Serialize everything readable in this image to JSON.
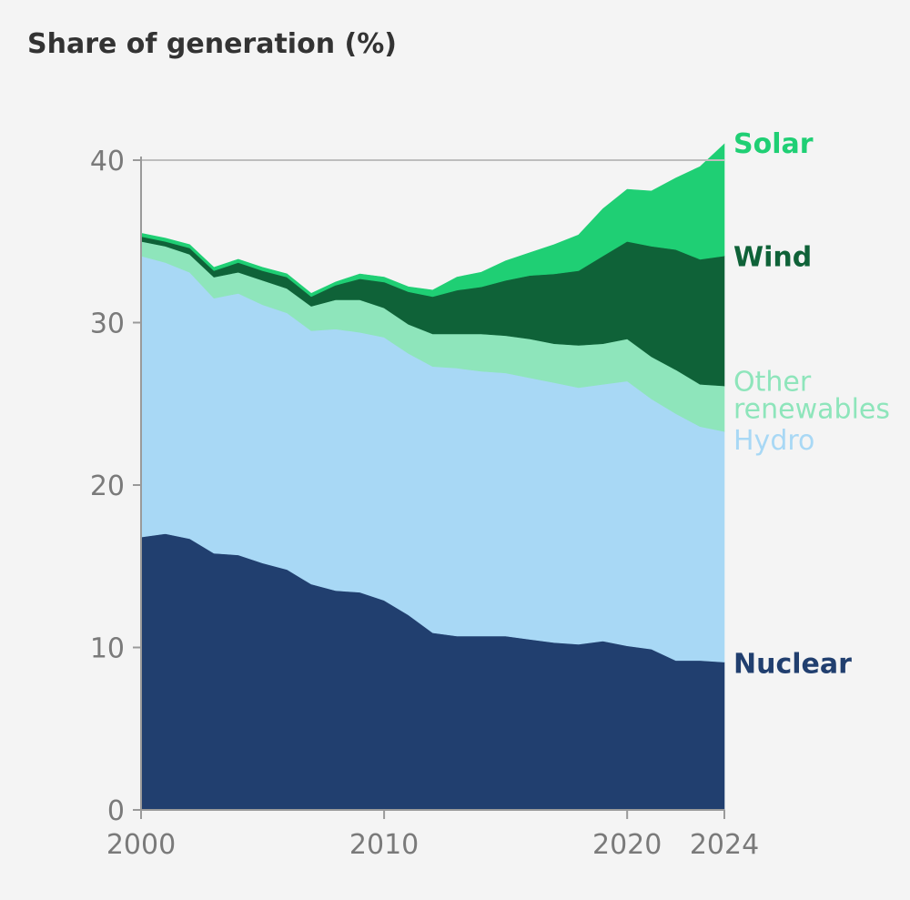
{
  "chart_data": {
    "type": "area",
    "stacked": true,
    "title": "Share of generation (%)",
    "xlabel": "",
    "ylabel": "",
    "xlim": [
      2000,
      2024
    ],
    "ylim": [
      0,
      40
    ],
    "x_ticks": [
      {
        "value": 2000,
        "label": "2000"
      },
      {
        "value": 2010,
        "label": "2010"
      },
      {
        "value": 2020,
        "label": "2020"
      },
      {
        "value": 2024,
        "label": "2024"
      }
    ],
    "y_ticks": [
      {
        "value": 0,
        "label": "0"
      },
      {
        "value": 10,
        "label": "10"
      },
      {
        "value": 20,
        "label": "20"
      },
      {
        "value": 30,
        "label": "30"
      },
      {
        "value": 40,
        "label": "40"
      }
    ],
    "grid": false,
    "reference_line": 40,
    "legend": "direct labels at right end",
    "x": [
      2000,
      2001,
      2002,
      2003,
      2004,
      2005,
      2006,
      2007,
      2008,
      2009,
      2010,
      2011,
      2012,
      2013,
      2014,
      2015,
      2016,
      2017,
      2018,
      2019,
      2020,
      2021,
      2022,
      2023,
      2024
    ],
    "series": [
      {
        "name": "Nuclear",
        "color": "#213f6f",
        "values": [
          16.8,
          17.0,
          16.7,
          15.8,
          15.7,
          15.2,
          14.8,
          13.9,
          13.5,
          13.4,
          12.9,
          12.0,
          10.9,
          10.7,
          10.7,
          10.7,
          10.5,
          10.3,
          10.2,
          10.4,
          10.1,
          9.9,
          9.2,
          9.2,
          9.1
        ]
      },
      {
        "name": "Hydro",
        "color": "#a8d8f5",
        "values": [
          17.3,
          16.7,
          16.4,
          15.7,
          16.1,
          15.9,
          15.8,
          15.6,
          16.1,
          16.0,
          16.2,
          16.1,
          16.4,
          16.5,
          16.3,
          16.2,
          16.1,
          16.0,
          15.8,
          15.8,
          16.3,
          15.4,
          15.2,
          14.4,
          14.2
        ]
      },
      {
        "name": "Other renewables",
        "color": "#8ee5bb",
        "values": [
          0.9,
          1.0,
          1.1,
          1.3,
          1.3,
          1.5,
          1.5,
          1.5,
          1.8,
          2.0,
          1.8,
          1.8,
          2.0,
          2.1,
          2.3,
          2.3,
          2.4,
          2.4,
          2.6,
          2.5,
          2.6,
          2.6,
          2.7,
          2.6,
          2.8
        ]
      },
      {
        "name": "Wind",
        "color": "#0f6238",
        "values": [
          0.3,
          0.3,
          0.4,
          0.4,
          0.6,
          0.6,
          0.7,
          0.6,
          0.9,
          1.3,
          1.6,
          2.0,
          2.3,
          2.7,
          2.9,
          3.4,
          3.9,
          4.3,
          4.6,
          5.4,
          6.0,
          6.8,
          7.4,
          7.7,
          8.0
        ]
      },
      {
        "name": "Solar",
        "color": "#1fcf74",
        "values": [
          0.2,
          0.2,
          0.2,
          0.2,
          0.2,
          0.2,
          0.2,
          0.2,
          0.2,
          0.3,
          0.3,
          0.3,
          0.4,
          0.8,
          0.9,
          1.2,
          1.4,
          1.8,
          2.2,
          2.9,
          3.2,
          3.4,
          4.4,
          5.7,
          6.9
        ]
      }
    ],
    "series_labels": [
      {
        "series": "Solar",
        "lines": [
          "Solar"
        ],
        "color": "#1fcf74"
      },
      {
        "series": "Wind",
        "lines": [
          "Wind"
        ],
        "color": "#0f6238"
      },
      {
        "series": "Other renewables",
        "lines": [
          "Other",
          "renewables"
        ],
        "color": "#8ee5bb"
      },
      {
        "series": "Hydro",
        "lines": [
          "Hydro"
        ],
        "color": "#a8d8f5"
      },
      {
        "series": "Nuclear",
        "lines": [
          "Nuclear"
        ],
        "color": "#213f6f"
      }
    ]
  }
}
